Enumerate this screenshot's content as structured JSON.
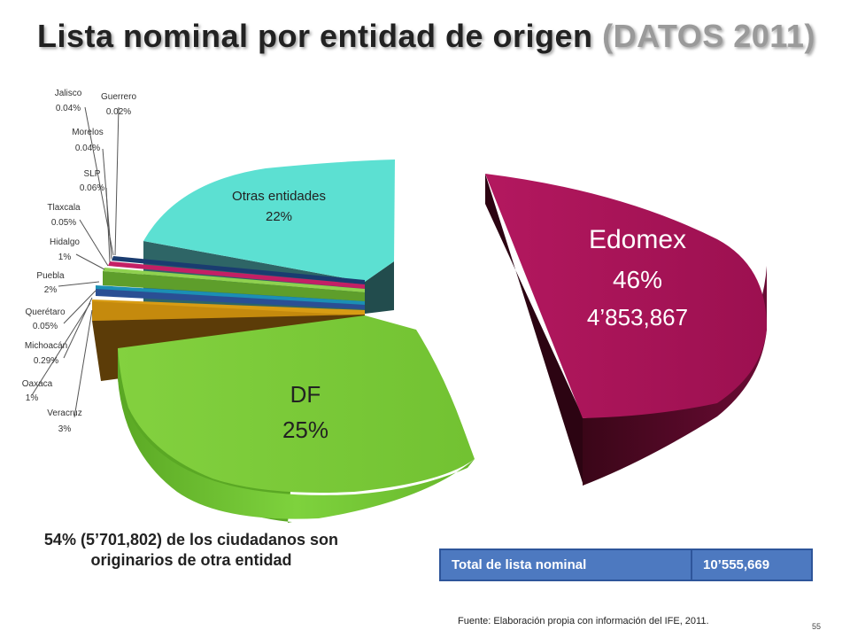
{
  "title": {
    "main": "Lista nominal por entidad de origen",
    "paren": "(DATOS 2011)"
  },
  "chart_data": {
    "type": "pie",
    "title": "Lista nominal por entidad de origen (DATOS 2011)",
    "slices": [
      {
        "name": "Edomex",
        "value": 46,
        "label": "46%",
        "extra": "4’853,867",
        "color": "#a81559"
      },
      {
        "name": "DF",
        "value": 25,
        "label": "25%",
        "color": "#7ccb3b"
      },
      {
        "name": "Veracruz",
        "value": 3,
        "label": "3%",
        "color": "#5c3c08"
      },
      {
        "name": "Oaxaca",
        "value": 1,
        "label": "1%",
        "color": "#d89c14"
      },
      {
        "name": "Michoacán",
        "value": 0.29,
        "label": "0.29%",
        "color": "#2a4f94"
      },
      {
        "name": "Querétaro",
        "value": 0.05,
        "label": "0.05%",
        "color": "#1b8fb4"
      },
      {
        "name": "Puebla",
        "value": 2,
        "label": "2%",
        "color": "#8fd14f"
      },
      {
        "name": "Hidalgo",
        "value": 1,
        "label": "1%",
        "color": "#d84d8a"
      },
      {
        "name": "Tlaxcala",
        "value": 0.05,
        "label": "0.05%",
        "color": "#3a6fbf"
      },
      {
        "name": "SLP",
        "value": 0.06,
        "label": "0.06%",
        "color": "#c0c0c0"
      },
      {
        "name": "Morelos",
        "value": 0.04,
        "label": "0.04%",
        "color": "#c41f65"
      },
      {
        "name": "Jalisco",
        "value": 0.04,
        "label": "0.04%",
        "color": "#6a3fa0"
      },
      {
        "name": "Guerrero",
        "value": 0.02,
        "label": "0.02%",
        "color": "#2f7f3a"
      },
      {
        "name": "Otras entidades",
        "value": 22,
        "label": "22%",
        "color": "#5ce0d2"
      }
    ]
  },
  "note": "54% (5’701,802) de los ciudadanos son originarios de otra entidad",
  "total": {
    "label": "Total de lista nominal",
    "value": "10’555,669"
  },
  "source": "Fuente: Elaboración propia con información del IFE, 2011.",
  "page_number": "55"
}
